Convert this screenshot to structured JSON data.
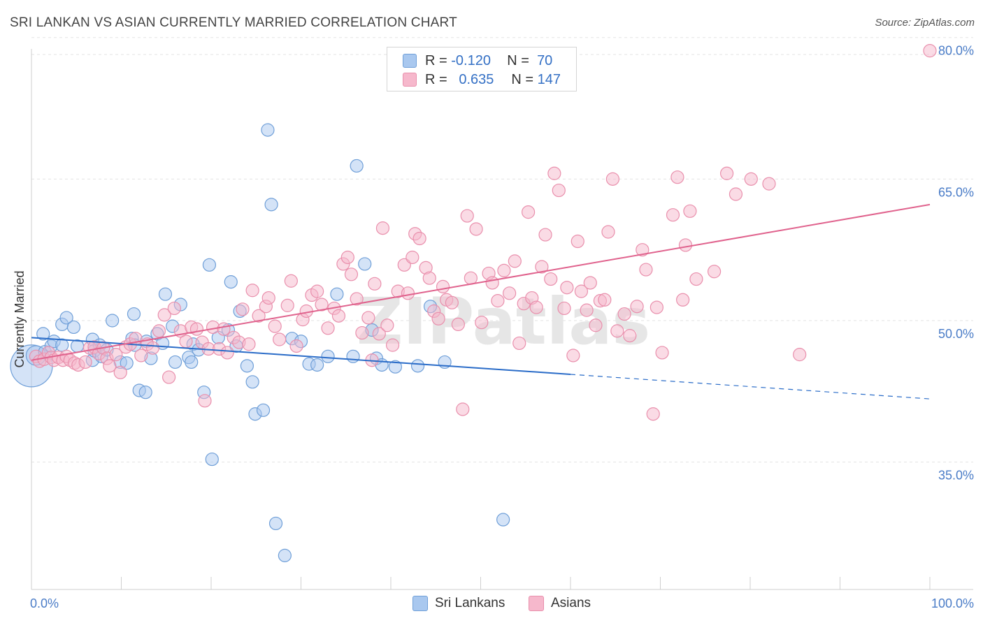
{
  "header": {
    "title": "SRI LANKAN VS ASIAN CURRENTLY MARRIED CORRELATION CHART",
    "source": "Source: ZipAtlas.com"
  },
  "legend": {
    "rows": [
      {
        "r_label": "R =",
        "r_value": "-0.120",
        "n_label": "N =",
        "n_value": "70"
      },
      {
        "r_label": "R =",
        "r_value": "0.635",
        "n_label": "N =",
        "n_value": "147"
      }
    ]
  },
  "colors": {
    "sri_fill": "#a9c8ef",
    "sri_stroke": "#6f9fd8",
    "sri_line": "#2a6cc8",
    "asian_fill": "#f6b8cc",
    "asian_stroke": "#e98fac",
    "asian_line": "#e0628d",
    "tick_text": "#4a7cc7",
    "grid": "#e3e3e3"
  },
  "chart_data": {
    "type": "scatter",
    "title": "SRI LANKAN VS ASIAN CURRENTLY MARRIED CORRELATION CHART",
    "xlabel": "",
    "ylabel": "Currently Married",
    "xlim": [
      0,
      100
    ],
    "ylim": [
      21.5,
      83
    ],
    "x_tick_labels": [
      "0.0%",
      "100.0%"
    ],
    "y_ticks": [
      35,
      50,
      65,
      80
    ],
    "y_tick_labels": [
      "35.0%",
      "50.0%",
      "65.0%",
      "80.0%"
    ],
    "watermark": "ZIPatlas",
    "series": [
      {
        "name": "Sri Lankans",
        "trend": {
          "x0": 0,
          "y0": 48.2,
          "x1": 60,
          "y1": 44.3,
          "dashed_to_x": 100,
          "dashed_to_y": 41.7
        },
        "points": [
          [
            0,
            45.2,
            30
          ],
          [
            0.5,
            46.3,
            14
          ],
          [
            1.3,
            48.6,
            9
          ],
          [
            1.5,
            46.7,
            9
          ],
          [
            2.2,
            47.3,
            9
          ],
          [
            2.5,
            47.8,
            9
          ],
          [
            3.4,
            47.4,
            9
          ],
          [
            3.4,
            49.6,
            9
          ],
          [
            3.9,
            50.3,
            9
          ],
          [
            4.7,
            49.3,
            9
          ],
          [
            5.1,
            47.3,
            9
          ],
          [
            6.8,
            48.0,
            9
          ],
          [
            6.8,
            45.8,
            9
          ],
          [
            7.0,
            46.8,
            9
          ],
          [
            7.6,
            47.4,
            9
          ],
          [
            7.8,
            46.2,
            9
          ],
          [
            8.4,
            46.9,
            9
          ],
          [
            9.0,
            50.0,
            9
          ],
          [
            9.9,
            45.6,
            9
          ],
          [
            10.6,
            45.5,
            9
          ],
          [
            11.2,
            48.1,
            9
          ],
          [
            11.4,
            50.7,
            9
          ],
          [
            11.5,
            47.4,
            9
          ],
          [
            12.0,
            42.6,
            9
          ],
          [
            12.7,
            42.4,
            9
          ],
          [
            12.8,
            47.8,
            9
          ],
          [
            13.3,
            46.0,
            9
          ],
          [
            14.0,
            48.6,
            9
          ],
          [
            14.6,
            47.6,
            9
          ],
          [
            14.9,
            52.8,
            9
          ],
          [
            15.7,
            49.4,
            9
          ],
          [
            16.0,
            45.6,
            9
          ],
          [
            16.6,
            51.7,
            9
          ],
          [
            17.5,
            46.1,
            9
          ],
          [
            17.8,
            45.6,
            9
          ],
          [
            18.0,
            47.5,
            9
          ],
          [
            18.6,
            46.9,
            9
          ],
          [
            19.2,
            42.4,
            9
          ],
          [
            19.8,
            55.9,
            9
          ],
          [
            20.1,
            35.3,
            9
          ],
          [
            20.8,
            48.2,
            9
          ],
          [
            21.9,
            49.0,
            9
          ],
          [
            22.2,
            54.1,
            9
          ],
          [
            22.8,
            47.3,
            9
          ],
          [
            23.2,
            51.0,
            9
          ],
          [
            24.0,
            45.2,
            9
          ],
          [
            24.6,
            43.5,
            9
          ],
          [
            24.9,
            40.1,
            9
          ],
          [
            25.8,
            40.5,
            9
          ],
          [
            26.3,
            70.2,
            9
          ],
          [
            26.7,
            62.3,
            9
          ],
          [
            27.2,
            28.5,
            9
          ],
          [
            28.2,
            25.1,
            9
          ],
          [
            29.0,
            48.1,
            9
          ],
          [
            30.0,
            47.8,
            9
          ],
          [
            30.9,
            45.4,
            9
          ],
          [
            31.8,
            45.3,
            9
          ],
          [
            33.0,
            46.2,
            9
          ],
          [
            34.0,
            52.8,
            9
          ],
          [
            35.8,
            46.2,
            9
          ],
          [
            36.2,
            66.4,
            9
          ],
          [
            37.1,
            56.0,
            9
          ],
          [
            37.9,
            49.0,
            9
          ],
          [
            38.4,
            46.0,
            9
          ],
          [
            39.0,
            45.3,
            9
          ],
          [
            40.5,
            45.1,
            9
          ],
          [
            43.0,
            45.2,
            9
          ],
          [
            44.4,
            51.5,
            9
          ],
          [
            46.0,
            45.6,
            9
          ],
          [
            52.5,
            28.9,
            9
          ]
        ]
      },
      {
        "name": "Asians",
        "trend": {
          "x0": 0,
          "y0": 45.8,
          "x1": 100,
          "y1": 62.3
        },
        "points": [
          [
            0.5,
            46.2,
            9
          ],
          [
            0.9,
            45.7,
            9
          ],
          [
            1.4,
            45.9,
            9
          ],
          [
            1.9,
            46.6,
            9
          ],
          [
            2.2,
            46.1,
            9
          ],
          [
            2.5,
            45.8,
            9
          ],
          [
            3.0,
            46.1,
            9
          ],
          [
            3.5,
            45.8,
            9
          ],
          [
            3.9,
            46.2,
            9
          ],
          [
            4.3,
            45.8,
            9
          ],
          [
            4.8,
            45.5,
            9
          ],
          [
            5.2,
            45.3,
            9
          ],
          [
            6.0,
            45.6,
            9
          ],
          [
            6.5,
            47.1,
            9
          ],
          [
            7.0,
            47.2,
            9
          ],
          [
            7.5,
            46.5,
            9
          ],
          [
            8.0,
            47.1,
            9
          ],
          [
            8.4,
            46.0,
            9
          ],
          [
            8.7,
            45.2,
            9
          ],
          [
            9.4,
            46.4,
            9
          ],
          [
            9.9,
            44.5,
            9
          ],
          [
            10.5,
            47.2,
            9
          ],
          [
            11.0,
            47.5,
            9
          ],
          [
            11.6,
            48.1,
            9
          ],
          [
            12.2,
            46.3,
            9
          ],
          [
            12.9,
            47.5,
            9
          ],
          [
            13.5,
            47.1,
            9
          ],
          [
            14.2,
            48.9,
            9
          ],
          [
            14.8,
            50.6,
            9
          ],
          [
            15.3,
            44.0,
            9
          ],
          [
            15.9,
            51.3,
            9
          ],
          [
            16.6,
            48.9,
            9
          ],
          [
            17.2,
            47.8,
            9
          ],
          [
            17.8,
            49.3,
            9
          ],
          [
            18.4,
            49.1,
            9
          ],
          [
            19.0,
            47.7,
            9
          ],
          [
            19.3,
            41.5,
            9
          ],
          [
            19.7,
            47.0,
            9
          ],
          [
            20.2,
            49.3,
            9
          ],
          [
            20.9,
            47.0,
            9
          ],
          [
            21.4,
            49.1,
            9
          ],
          [
            21.8,
            46.6,
            9
          ],
          [
            22.5,
            48.2,
            9
          ],
          [
            23.1,
            47.7,
            9
          ],
          [
            23.5,
            51.2,
            9
          ],
          [
            24.2,
            47.5,
            9
          ],
          [
            24.6,
            53.2,
            9
          ],
          [
            25.3,
            50.5,
            9
          ],
          [
            26.1,
            51.5,
            9
          ],
          [
            26.4,
            52.4,
            9
          ],
          [
            27.1,
            49.4,
            9
          ],
          [
            27.6,
            48.0,
            9
          ],
          [
            28.5,
            51.6,
            9
          ],
          [
            28.9,
            54.2,
            9
          ],
          [
            29.5,
            47.3,
            9
          ],
          [
            30.2,
            50.1,
            9
          ],
          [
            30.6,
            51.0,
            9
          ],
          [
            31.2,
            52.7,
            9
          ],
          [
            31.8,
            53.1,
            9
          ],
          [
            32.3,
            51.7,
            9
          ],
          [
            33.0,
            49.2,
            9
          ],
          [
            33.7,
            51.3,
            9
          ],
          [
            34.2,
            50.5,
            9
          ],
          [
            34.7,
            56.0,
            9
          ],
          [
            35.2,
            56.7,
            9
          ],
          [
            35.6,
            54.9,
            9
          ],
          [
            36.2,
            52.3,
            9
          ],
          [
            36.8,
            48.7,
            9
          ],
          [
            37.5,
            50.3,
            9
          ],
          [
            37.9,
            45.8,
            9
          ],
          [
            38.2,
            53.9,
            9
          ],
          [
            38.7,
            48.6,
            9
          ],
          [
            39.1,
            59.8,
            9
          ],
          [
            39.6,
            49.5,
            9
          ],
          [
            40.2,
            47.4,
            9
          ],
          [
            40.8,
            53.1,
            9
          ],
          [
            41.5,
            55.9,
            9
          ],
          [
            41.9,
            52.9,
            9
          ],
          [
            42.4,
            56.7,
            9
          ],
          [
            42.7,
            59.2,
            9
          ],
          [
            43.2,
            58.7,
            9
          ],
          [
            43.9,
            55.6,
            9
          ],
          [
            44.3,
            54.5,
            9
          ],
          [
            44.8,
            51.0,
            9
          ],
          [
            45.3,
            50.2,
            9
          ],
          [
            45.8,
            53.6,
            9
          ],
          [
            46.2,
            52.2,
            9
          ],
          [
            46.8,
            51.9,
            9
          ],
          [
            47.5,
            49.6,
            9
          ],
          [
            48.0,
            40.6,
            9
          ],
          [
            48.5,
            61.1,
            9
          ],
          [
            48.9,
            54.5,
            9
          ],
          [
            49.5,
            59.7,
            9
          ],
          [
            50.1,
            49.8,
            9
          ],
          [
            50.9,
            55.0,
            9
          ],
          [
            51.3,
            54.0,
            9
          ],
          [
            51.9,
            52.1,
            9
          ],
          [
            52.6,
            55.3,
            9
          ],
          [
            53.2,
            52.9,
            9
          ],
          [
            53.8,
            56.3,
            9
          ],
          [
            54.3,
            47.6,
            9
          ],
          [
            54.8,
            51.8,
            9
          ],
          [
            55.3,
            61.5,
            9
          ],
          [
            55.7,
            52.4,
            9
          ],
          [
            56.2,
            51.4,
            9
          ],
          [
            56.8,
            55.7,
            9
          ],
          [
            57.2,
            59.1,
            9
          ],
          [
            57.8,
            54.4,
            9
          ],
          [
            58.2,
            65.6,
            9
          ],
          [
            58.7,
            63.8,
            9
          ],
          [
            59.3,
            51.3,
            9
          ],
          [
            59.6,
            53.5,
            9
          ],
          [
            60.3,
            46.3,
            9
          ],
          [
            60.8,
            58.4,
            9
          ],
          [
            61.2,
            53.1,
            9
          ],
          [
            61.8,
            51.1,
            9
          ],
          [
            62.2,
            54.0,
            9
          ],
          [
            62.8,
            49.5,
            9
          ],
          [
            63.3,
            52.1,
            9
          ],
          [
            63.8,
            52.2,
            9
          ],
          [
            64.2,
            59.4,
            9
          ],
          [
            64.7,
            65.0,
            9
          ],
          [
            65.2,
            48.9,
            9
          ],
          [
            66.0,
            50.7,
            9
          ],
          [
            66.6,
            48.4,
            9
          ],
          [
            67.4,
            51.5,
            9
          ],
          [
            68.0,
            57.5,
            9
          ],
          [
            68.4,
            55.4,
            9
          ],
          [
            69.2,
            40.1,
            9
          ],
          [
            69.6,
            51.4,
            9
          ],
          [
            70.2,
            46.6,
            9
          ],
          [
            71.4,
            61.2,
            9
          ],
          [
            71.9,
            65.2,
            9
          ],
          [
            72.5,
            52.2,
            9
          ],
          [
            72.8,
            58.0,
            9
          ],
          [
            73.3,
            61.6,
            9
          ],
          [
            74.0,
            54.4,
            9
          ],
          [
            76.0,
            55.2,
            9
          ],
          [
            77.4,
            65.6,
            9
          ],
          [
            78.4,
            63.4,
            9
          ],
          [
            80.1,
            65.0,
            9
          ],
          [
            82.1,
            64.5,
            9
          ],
          [
            85.5,
            46.4,
            9
          ],
          [
            100.0,
            78.6,
            9
          ]
        ]
      }
    ]
  },
  "bottom_legend": {
    "items": [
      {
        "label": "Sri Lankans"
      },
      {
        "label": "Asians"
      }
    ]
  }
}
